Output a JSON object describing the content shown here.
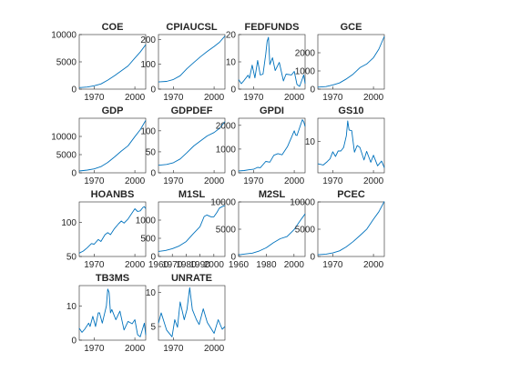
{
  "figure": {
    "series_color": "#0072bd",
    "background": "#ffffff",
    "axis_color": "#262626"
  },
  "chart_data": [
    {
      "type": "line",
      "title": "COE",
      "xlabel": "",
      "ylabel": "",
      "xlim": [
        1959,
        2008
      ],
      "ylim": [
        0,
        10000
      ],
      "xticks": [
        1970,
        2000
      ],
      "yticks": [
        0,
        5000,
        10000
      ],
      "x": [
        1959,
        1965,
        1970,
        1975,
        1980,
        1985,
        1990,
        1995,
        2000,
        2004,
        2008
      ],
      "values": [
        280,
        390,
        620,
        950,
        1650,
        2450,
        3350,
        4250,
        5700,
        6800,
        8150
      ]
    },
    {
      "type": "line",
      "title": "CPIAUCSL",
      "xlabel": "",
      "ylabel": "",
      "xlim": [
        1959,
        2008
      ],
      "ylim": [
        0,
        220
      ],
      "xticks": [
        1970,
        2000
      ],
      "yticks": [
        0,
        100,
        200
      ],
      "x": [
        1959,
        1965,
        1970,
        1975,
        1980,
        1985,
        1990,
        1995,
        2000,
        2004,
        2008
      ],
      "values": [
        29,
        31,
        39,
        54,
        83,
        107,
        131,
        152,
        172,
        189,
        214
      ]
    },
    {
      "type": "line",
      "title": "FEDFUNDS",
      "xlabel": "",
      "ylabel": "",
      "xlim": [
        1959,
        2008
      ],
      "ylim": [
        0,
        20
      ],
      "xticks": [
        1970,
        2000
      ],
      "yticks": [
        0,
        10,
        20
      ],
      "x": [
        1959,
        1961,
        1963,
        1966,
        1967,
        1969,
        1971,
        1973,
        1975,
        1977,
        1979,
        1980,
        1981,
        1982,
        1984,
        1986,
        1989,
        1992,
        1994,
        1998,
        2000,
        2002,
        2004,
        2007,
        2008
      ],
      "values": [
        3.5,
        2.0,
        3.2,
        5.1,
        4.0,
        8.8,
        4.1,
        10.5,
        5.2,
        5.5,
        12.8,
        17.5,
        19.0,
        9.0,
        11.5,
        6.8,
        9.8,
        3.0,
        5.5,
        5.2,
        6.5,
        1.7,
        1.0,
        5.2,
        2.0
      ]
    },
    {
      "type": "line",
      "title": "GCE",
      "xlabel": "",
      "ylabel": "",
      "xlim": [
        1959,
        2008
      ],
      "ylim": [
        0,
        3000
      ],
      "xticks": [
        1970,
        2000
      ],
      "yticks": [
        0,
        1000,
        2000
      ],
      "x": [
        1959,
        1965,
        1970,
        1975,
        1980,
        1985,
        1990,
        1995,
        2000,
        2004,
        2008
      ],
      "values": [
        110,
        140,
        230,
        340,
        560,
        820,
        1180,
        1380,
        1730,
        2200,
        2900
      ]
    },
    {
      "type": "line",
      "title": "GDP",
      "xlabel": "",
      "ylabel": "",
      "xlim": [
        1959,
        2008
      ],
      "ylim": [
        0,
        15000
      ],
      "xticks": [
        1970,
        2000
      ],
      "yticks": [
        0,
        5000,
        10000
      ],
      "x": [
        1959,
        1965,
        1970,
        1975,
        1980,
        1985,
        1990,
        1995,
        2000,
        2004,
        2008
      ],
      "values": [
        510,
        740,
        1070,
        1690,
        2860,
        4340,
        5980,
        7420,
        9950,
        11860,
        14400
      ]
    },
    {
      "type": "line",
      "title": "GDPDEF",
      "xlabel": "",
      "ylabel": "",
      "xlim": [
        1959,
        2008
      ],
      "ylim": [
        0,
        130
      ],
      "xticks": [
        1970,
        2000
      ],
      "yticks": [
        0,
        50,
        100
      ],
      "x": [
        1959,
        1965,
        1970,
        1975,
        1980,
        1985,
        1990,
        1995,
        2000,
        2004,
        2008
      ],
      "values": [
        18,
        20,
        24,
        33,
        48,
        64,
        76,
        88,
        96,
        106,
        122
      ]
    },
    {
      "type": "line",
      "title": "GPDI",
      "xlabel": "",
      "ylabel": "",
      "xlim": [
        1959,
        2008
      ],
      "ylim": [
        0,
        2300
      ],
      "xticks": [
        1970,
        2000
      ],
      "yticks": [
        0,
        1000,
        2000
      ],
      "x": [
        1959,
        1963,
        1967,
        1970,
        1973,
        1975,
        1979,
        1982,
        1985,
        1988,
        1991,
        1995,
        1998,
        2000,
        2001,
        2002,
        2004,
        2006,
        2007,
        2008
      ],
      "values": [
        80,
        95,
        130,
        150,
        230,
        215,
        480,
        450,
        740,
        810,
        760,
        1100,
        1500,
        1770,
        1600,
        1570,
        1900,
        2240,
        2150,
        1950
      ]
    },
    {
      "type": "line",
      "title": "GS10",
      "xlabel": "",
      "ylabel": "",
      "xlim": [
        1959,
        2008
      ],
      "ylim": [
        2,
        16
      ],
      "xticks": [
        1970,
        2000
      ],
      "yticks": [
        10
      ],
      "x": [
        1959,
        1963,
        1966,
        1968,
        1970,
        1972,
        1974,
        1976,
        1978,
        1980,
        1981,
        1982,
        1984,
        1986,
        1988,
        1990,
        1993,
        1995,
        1998,
        2000,
        2003,
        2006,
        2008
      ],
      "values": [
        4.3,
        4.0,
        4.9,
        5.6,
        7.4,
        6.2,
        7.6,
        7.6,
        8.5,
        11.5,
        15.3,
        13.0,
        12.8,
        7.3,
        9.0,
        8.5,
        5.3,
        7.5,
        4.7,
        6.5,
        3.8,
        5.0,
        3.3
      ]
    },
    {
      "type": "line",
      "title": "HOANBS",
      "xlabel": "",
      "ylabel": "",
      "xlim": [
        1959,
        2008
      ],
      "ylim": [
        50,
        130
      ],
      "xticks": [
        1970,
        2000
      ],
      "yticks": [
        50,
        100
      ],
      "x": [
        1959,
        1962,
        1965,
        1968,
        1970,
        1973,
        1975,
        1978,
        1980,
        1982,
        1985,
        1988,
        1990,
        1992,
        1995,
        1998,
        2000,
        2002,
        2004,
        2006,
        2007,
        2008
      ],
      "values": [
        55,
        58,
        63,
        69,
        68,
        75,
        72,
        82,
        85,
        82,
        91,
        98,
        102,
        99,
        105,
        114,
        120,
        116,
        117,
        122,
        123,
        120
      ]
    },
    {
      "type": "line",
      "title": "M1SL",
      "xlabel": "",
      "ylabel": "",
      "xlim": [
        1960,
        2008
      ],
      "ylim": [
        0,
        1500
      ],
      "xticks": [
        1960,
        1970,
        1980,
        1990,
        2000
      ],
      "yticks": [
        0,
        500,
        1000
      ],
      "x": [
        1960,
        1965,
        1970,
        1975,
        1980,
        1985,
        1990,
        1993,
        1995,
        1998,
        2000,
        2002,
        2004,
        2006,
        2008
      ],
      "values": [
        140,
        165,
        215,
        290,
        410,
        620,
        820,
        1100,
        1140,
        1090,
        1090,
        1200,
        1330,
        1370,
        1400
      ]
    },
    {
      "type": "line",
      "title": "M2SL",
      "xlabel": "",
      "ylabel": "",
      "xlim": [
        1960,
        2008
      ],
      "ylim": [
        0,
        10000
      ],
      "xticks": [
        1960,
        1980,
        2000
      ],
      "yticks": [
        0,
        5000,
        10000
      ],
      "x": [
        1960,
        1965,
        1970,
        1975,
        1980,
        1985,
        1990,
        1995,
        2000,
        2004,
        2008
      ],
      "values": [
        300,
        460,
        620,
        1020,
        1600,
        2500,
        3250,
        3650,
        4900,
        6400,
        7800
      ]
    },
    {
      "type": "line",
      "title": "PCEC",
      "xlabel": "",
      "ylabel": "",
      "xlim": [
        1959,
        2008
      ],
      "ylim": [
        0,
        10000
      ],
      "xticks": [
        1970,
        2000
      ],
      "yticks": [
        0,
        5000,
        10000
      ],
      "x": [
        1959,
        1965,
        1970,
        1975,
        1980,
        1985,
        1990,
        1995,
        2000,
        2004,
        2008
      ],
      "values": [
        310,
        440,
        650,
        1030,
        1760,
        2720,
        3840,
        4980,
        6830,
        8200,
        10100
      ]
    },
    {
      "type": "line",
      "title": "TB3MS",
      "xlabel": "",
      "ylabel": "",
      "xlim": [
        1959,
        2008
      ],
      "ylim": [
        0,
        16
      ],
      "xticks": [
        1970,
        2000
      ],
      "yticks": [
        0,
        10
      ],
      "x": [
        1959,
        1961,
        1963,
        1966,
        1967,
        1969,
        1971,
        1973,
        1974,
        1976,
        1979,
        1980,
        1981,
        1982,
        1983,
        1986,
        1989,
        1992,
        1995,
        1998,
        2000,
        2002,
        2004,
        2007,
        2008
      ],
      "values": [
        3.5,
        2.3,
        3.2,
        5.0,
        4.0,
        7.0,
        4.0,
        8.0,
        8.0,
        5.0,
        10.0,
        15.0,
        14.0,
        8.0,
        9.0,
        6.0,
        8.5,
        3.0,
        5.5,
        4.8,
        6.0,
        1.6,
        1.0,
        5.0,
        1.5
      ]
    },
    {
      "type": "line",
      "title": "UNRATE",
      "xlabel": "",
      "ylabel": "",
      "xlim": [
        1959,
        2008
      ],
      "ylim": [
        3,
        11
      ],
      "xticks": [
        1970,
        2000
      ],
      "yticks": [
        5,
        10
      ],
      "x": [
        1959,
        1961,
        1965,
        1969,
        1971,
        1973,
        1975,
        1978,
        1980,
        1982,
        1984,
        1987,
        1989,
        1992,
        1995,
        2000,
        2003,
        2006,
        2008
      ],
      "values": [
        5.5,
        7.0,
        4.5,
        3.5,
        6.0,
        4.9,
        8.6,
        6.0,
        7.5,
        10.7,
        7.5,
        6.0,
        5.3,
        7.6,
        5.6,
        4.0,
        6.0,
        4.6,
        5.0
      ]
    }
  ]
}
